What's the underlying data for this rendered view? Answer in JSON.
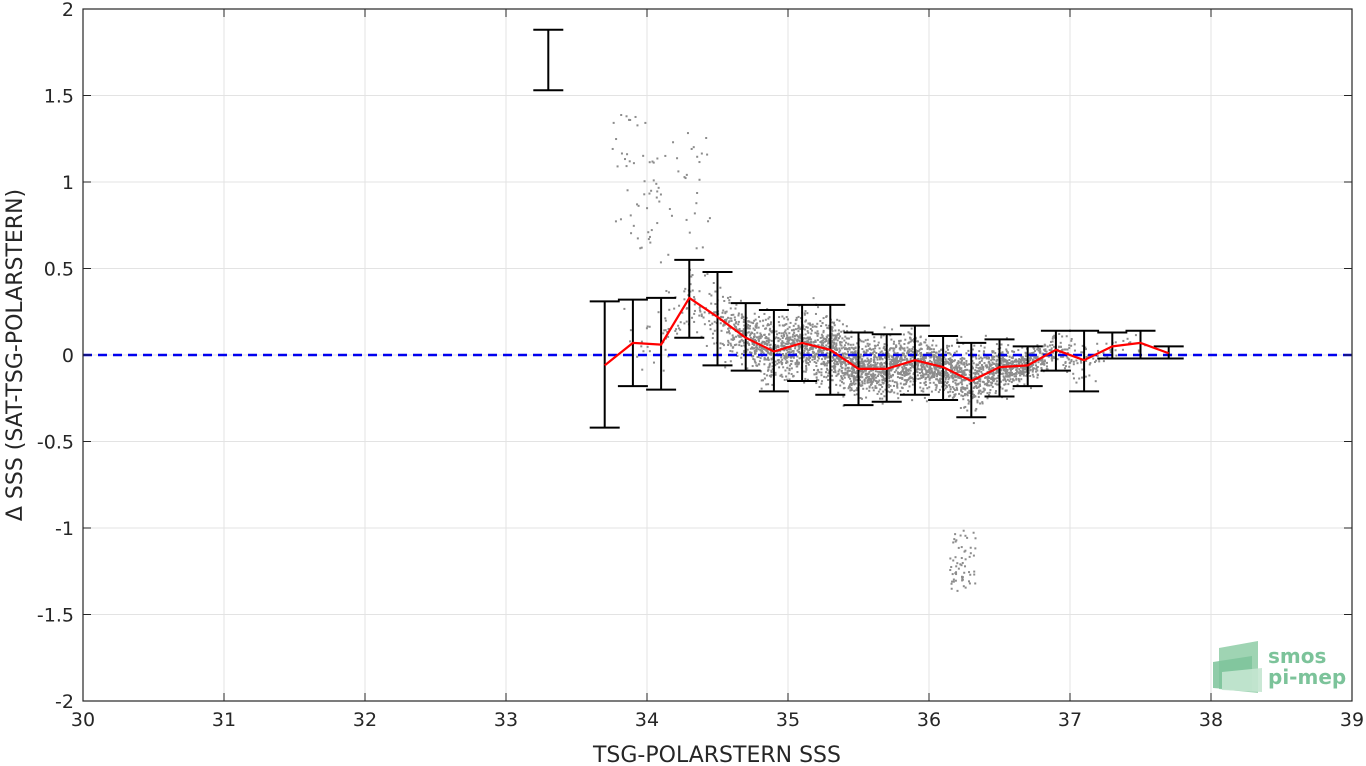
{
  "chart_data": {
    "type": "scatter",
    "xlabel": "TSG-POLARSTERN SSS",
    "ylabel": "Δ SSS (SAT-TSG-POLARSTERN)",
    "xlim": [
      30,
      39
    ],
    "ylim": [
      -2,
      2
    ],
    "xticks": [
      30,
      31,
      32,
      33,
      34,
      35,
      36,
      37,
      38,
      39
    ],
    "yticks": [
      2,
      1.5,
      1,
      0.5,
      0,
      -0.5,
      -1,
      -1.5,
      -2
    ],
    "grid": true,
    "zero_line": {
      "y": 0,
      "color": "#0000ee",
      "style": "dashed"
    },
    "mean_line": {
      "color": "#ff0000",
      "x": [
        33.7,
        33.9,
        34.1,
        34.3,
        34.5,
        34.7,
        34.9,
        35.1,
        35.3,
        35.5,
        35.7,
        35.9,
        36.1,
        36.3,
        36.5,
        36.7,
        36.9,
        37.1,
        37.3,
        37.5,
        37.7
      ],
      "y": [
        -0.06,
        0.07,
        0.06,
        0.33,
        0.22,
        0.1,
        0.02,
        0.07,
        0.03,
        -0.08,
        -0.08,
        -0.03,
        -0.07,
        -0.15,
        -0.07,
        -0.06,
        0.03,
        -0.03,
        0.05,
        0.07,
        0.01
      ]
    },
    "error_bars": {
      "color": "#000000",
      "items": [
        {
          "x": 33.7,
          "low": -0.42,
          "high": 0.31
        },
        {
          "x": 33.9,
          "low": -0.18,
          "high": 0.32
        },
        {
          "x": 34.1,
          "low": -0.2,
          "high": 0.33
        },
        {
          "x": 34.3,
          "low": 0.1,
          "high": 0.55
        },
        {
          "x": 34.5,
          "low": -0.06,
          "high": 0.48
        },
        {
          "x": 34.7,
          "low": -0.09,
          "high": 0.3
        },
        {
          "x": 34.9,
          "low": -0.21,
          "high": 0.26
        },
        {
          "x": 35.1,
          "low": -0.15,
          "high": 0.29
        },
        {
          "x": 35.3,
          "low": -0.23,
          "high": 0.29
        },
        {
          "x": 35.5,
          "low": -0.29,
          "high": 0.13
        },
        {
          "x": 35.7,
          "low": -0.27,
          "high": 0.12
        },
        {
          "x": 35.9,
          "low": -0.23,
          "high": 0.17
        },
        {
          "x": 36.1,
          "low": -0.26,
          "high": 0.11
        },
        {
          "x": 36.3,
          "low": -0.36,
          "high": 0.07
        },
        {
          "x": 36.5,
          "low": -0.24,
          "high": 0.09
        },
        {
          "x": 36.7,
          "low": -0.18,
          "high": 0.05
        },
        {
          "x": 36.9,
          "low": -0.09,
          "high": 0.14
        },
        {
          "x": 37.1,
          "low": -0.21,
          "high": 0.14
        },
        {
          "x": 37.3,
          "low": -0.02,
          "high": 0.13
        },
        {
          "x": 37.5,
          "low": -0.02,
          "high": 0.14
        },
        {
          "x": 37.7,
          "low": -0.02,
          "high": 0.05
        }
      ]
    },
    "uncertainty_bar": {
      "x": 33.3,
      "low": 1.53,
      "high": 1.88
    },
    "scatter": {
      "color": "#8c8c8c",
      "x_range": [
        33.6,
        37.8
      ],
      "y_range": [
        -1.37,
        1.5
      ]
    }
  },
  "logo": {
    "line1": "smos",
    "line2": "pi-mep",
    "color": "#7cc39a"
  }
}
